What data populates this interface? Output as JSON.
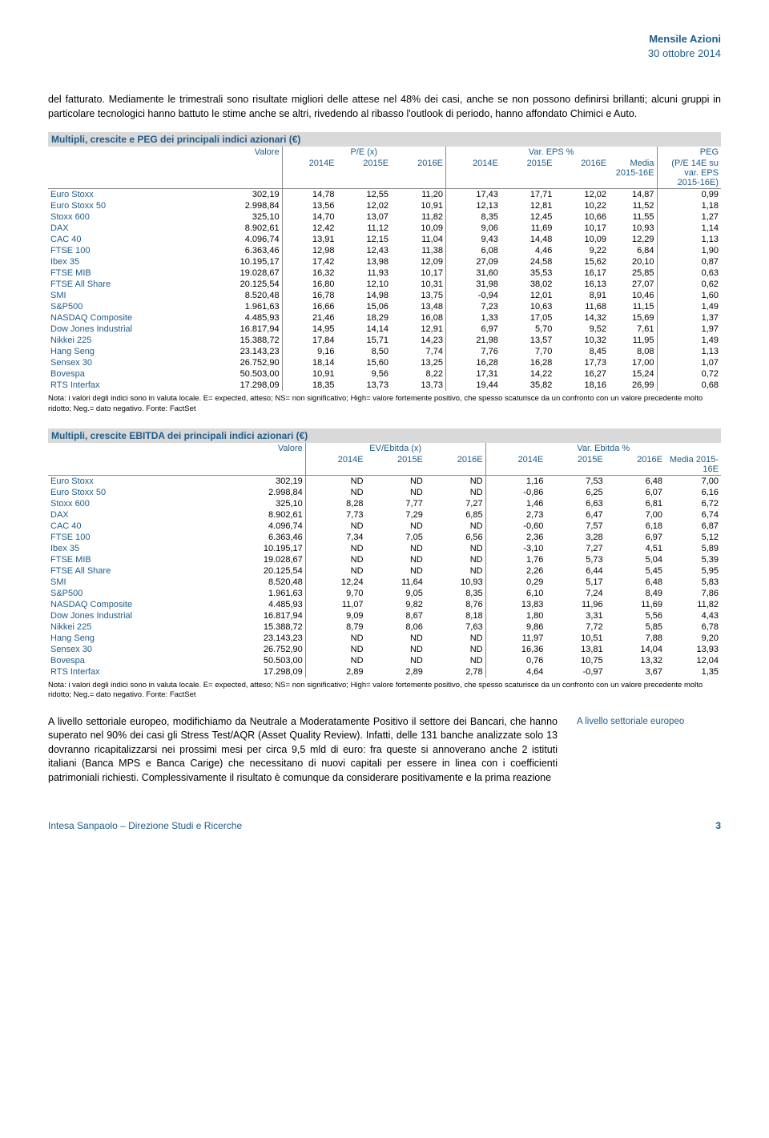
{
  "header": {
    "title": "Mensile Azioni",
    "subtitle": "30 ottobre 2014"
  },
  "intro": "del fatturato. Mediamente le trimestrali sono risultate migliori delle attese nel 48% dei casi, anche se non possono definirsi brillanti; alcuni gruppi in particolare tecnologici hanno battuto le stime anche se altri, rivedendo al ribasso l'outlook di periodo, hanno affondato Chimici e Auto.",
  "table1": {
    "title": "Multipli, crescite e PEG dei principali indici azionari (€)",
    "group_headers": {
      "valore": "Valore",
      "pe": "P/E (x)",
      "vareps": "Var. EPS %",
      "peg": "PEG"
    },
    "col_headers": {
      "c2014e": "2014E",
      "c2015e": "2015E",
      "c2016e": "2016E",
      "media": "Media 2015-16E",
      "peg": "(P/E 14E su var. EPS 2015-16E)"
    },
    "rows": [
      {
        "idx": "Euro Stoxx",
        "v": "302,19",
        "p14": "14,78",
        "p15": "12,55",
        "p16": "11,20",
        "e14": "17,43",
        "e15": "17,71",
        "e16": "12,02",
        "med": "14,87",
        "peg": "0,99"
      },
      {
        "idx": "Euro Stoxx 50",
        "v": "2.998,84",
        "p14": "13,56",
        "p15": "12,02",
        "p16": "10,91",
        "e14": "12,13",
        "e15": "12,81",
        "e16": "10,22",
        "med": "11,52",
        "peg": "1,18"
      },
      {
        "idx": "Stoxx 600",
        "v": "325,10",
        "p14": "14,70",
        "p15": "13,07",
        "p16": "11,82",
        "e14": "8,35",
        "e15": "12,45",
        "e16": "10,66",
        "med": "11,55",
        "peg": "1,27"
      },
      {
        "idx": "DAX",
        "v": "8.902,61",
        "p14": "12,42",
        "p15": "11,12",
        "p16": "10,09",
        "e14": "9,06",
        "e15": "11,69",
        "e16": "10,17",
        "med": "10,93",
        "peg": "1,14"
      },
      {
        "idx": "CAC 40",
        "v": "4.096,74",
        "p14": "13,91",
        "p15": "12,15",
        "p16": "11,04",
        "e14": "9,43",
        "e15": "14,48",
        "e16": "10,09",
        "med": "12,29",
        "peg": "1,13"
      },
      {
        "idx": "FTSE 100",
        "v": "6.363,46",
        "p14": "12,98",
        "p15": "12,43",
        "p16": "11,38",
        "e14": "6,08",
        "e15": "4,46",
        "e16": "9,22",
        "med": "6,84",
        "peg": "1,90"
      },
      {
        "idx": "Ibex 35",
        "v": "10.195,17",
        "p14": "17,42",
        "p15": "13,98",
        "p16": "12,09",
        "e14": "27,09",
        "e15": "24,58",
        "e16": "15,62",
        "med": "20,10",
        "peg": "0,87"
      },
      {
        "idx": "FTSE MIB",
        "v": "19.028,67",
        "p14": "16,32",
        "p15": "11,93",
        "p16": "10,17",
        "e14": "31,60",
        "e15": "35,53",
        "e16": "16,17",
        "med": "25,85",
        "peg": "0,63"
      },
      {
        "idx": "FTSE All Share",
        "v": "20.125,54",
        "p14": "16,80",
        "p15": "12,10",
        "p16": "10,31",
        "e14": "31,98",
        "e15": "38,02",
        "e16": "16,13",
        "med": "27,07",
        "peg": "0,62"
      },
      {
        "idx": "SMI",
        "v": "8.520,48",
        "p14": "16,78",
        "p15": "14,98",
        "p16": "13,75",
        "e14": "-0,94",
        "e15": "12,01",
        "e16": "8,91",
        "med": "10,46",
        "peg": "1,60"
      },
      {
        "idx": "S&P500",
        "v": "1.961,63",
        "p14": "16,66",
        "p15": "15,06",
        "p16": "13,48",
        "e14": "7,23",
        "e15": "10,63",
        "e16": "11,68",
        "med": "11,15",
        "peg": "1,49"
      },
      {
        "idx": "NASDAQ Composite",
        "v": "4.485,93",
        "p14": "21,46",
        "p15": "18,29",
        "p16": "16,08",
        "e14": "1,33",
        "e15": "17,05",
        "e16": "14,32",
        "med": "15,69",
        "peg": "1,37"
      },
      {
        "idx": "Dow Jones Industrial",
        "v": "16.817,94",
        "p14": "14,95",
        "p15": "14,14",
        "p16": "12,91",
        "e14": "6,97",
        "e15": "5,70",
        "e16": "9,52",
        "med": "7,61",
        "peg": "1,97"
      },
      {
        "idx": "Nikkei 225",
        "v": "15.388,72",
        "p14": "17,84",
        "p15": "15,71",
        "p16": "14,23",
        "e14": "21,98",
        "e15": "13,57",
        "e16": "10,32",
        "med": "11,95",
        "peg": "1,49"
      },
      {
        "idx": "Hang Seng",
        "v": "23.143,23",
        "p14": "9,16",
        "p15": "8,50",
        "p16": "7,74",
        "e14": "7,76",
        "e15": "7,70",
        "e16": "8,45",
        "med": "8,08",
        "peg": "1,13"
      },
      {
        "idx": "Sensex 30",
        "v": "26.752,90",
        "p14": "18,14",
        "p15": "15,60",
        "p16": "13,25",
        "e14": "16,28",
        "e15": "16,28",
        "e16": "17,73",
        "med": "17,00",
        "peg": "1,07"
      },
      {
        "idx": "Bovespa",
        "v": "50.503,00",
        "p14": "10,91",
        "p15": "9,56",
        "p16": "8,22",
        "e14": "17,31",
        "e15": "14,22",
        "e16": "16,27",
        "med": "15,24",
        "peg": "0,72"
      },
      {
        "idx": "RTS Interfax",
        "v": "17.298,09",
        "p14": "18,35",
        "p15": "13,73",
        "p16": "13,73",
        "e14": "19,44",
        "e15": "35,82",
        "e16": "18,16",
        "med": "26,99",
        "peg": "0,68"
      }
    ],
    "footnote": "Nota: i valori degli indici sono in valuta locale. E= expected, atteso; NS= non significativo; High= valore fortemente positivo, che spesso scaturisce da un confronto con un valore precedente molto ridotto; Neg.= dato negativo. Fonte: FactSet"
  },
  "table2": {
    "title": "Multipli, crescite EBITDA dei principali indici azionari (€)",
    "group_headers": {
      "valore": "Valore",
      "ev": "EV/Ebitda (x)",
      "vareb": "Var. Ebitda %"
    },
    "col_headers": {
      "c2014e": "2014E",
      "c2015e": "2015E",
      "c2016e": "2016E",
      "media": "Media 2015-16E"
    },
    "rows": [
      {
        "idx": "Euro Stoxx",
        "v": "302,19",
        "p14": "ND",
        "p15": "ND",
        "p16": "ND",
        "e14": "1,16",
        "e15": "7,53",
        "e16": "6,48",
        "med": "7,00"
      },
      {
        "idx": "Euro Stoxx 50",
        "v": "2.998,84",
        "p14": "ND",
        "p15": "ND",
        "p16": "ND",
        "e14": "-0,86",
        "e15": "6,25",
        "e16": "6,07",
        "med": "6,16"
      },
      {
        "idx": "Stoxx 600",
        "v": "325,10",
        "p14": "8,28",
        "p15": "7,77",
        "p16": "7,27",
        "e14": "1,46",
        "e15": "6,63",
        "e16": "6,81",
        "med": "6,72"
      },
      {
        "idx": "DAX",
        "v": "8.902,61",
        "p14": "7,73",
        "p15": "7,29",
        "p16": "6,85",
        "e14": "2,73",
        "e15": "6,47",
        "e16": "7,00",
        "med": "6,74"
      },
      {
        "idx": "CAC 40",
        "v": "4.096,74",
        "p14": "ND",
        "p15": "ND",
        "p16": "ND",
        "e14": "-0,60",
        "e15": "7,57",
        "e16": "6,18",
        "med": "6,87"
      },
      {
        "idx": "FTSE 100",
        "v": "6.363,46",
        "p14": "7,34",
        "p15": "7,05",
        "p16": "6,56",
        "e14": "2,36",
        "e15": "3,28",
        "e16": "6,97",
        "med": "5,12"
      },
      {
        "idx": "Ibex 35",
        "v": "10.195,17",
        "p14": "ND",
        "p15": "ND",
        "p16": "ND",
        "e14": "-3,10",
        "e15": "7,27",
        "e16": "4,51",
        "med": "5,89"
      },
      {
        "idx": "FTSE MIB",
        "v": "19.028,67",
        "p14": "ND",
        "p15": "ND",
        "p16": "ND",
        "e14": "1,76",
        "e15": "5,73",
        "e16": "5,04",
        "med": "5,39"
      },
      {
        "idx": "FTSE All Share",
        "v": "20.125,54",
        "p14": "ND",
        "p15": "ND",
        "p16": "ND",
        "e14": "2,26",
        "e15": "6,44",
        "e16": "5,45",
        "med": "5,95"
      },
      {
        "idx": "SMI",
        "v": "8.520,48",
        "p14": "12,24",
        "p15": "11,64",
        "p16": "10,93",
        "e14": "0,29",
        "e15": "5,17",
        "e16": "6,48",
        "med": "5,83"
      },
      {
        "idx": "S&P500",
        "v": "1.961,63",
        "p14": "9,70",
        "p15": "9,05",
        "p16": "8,35",
        "e14": "6,10",
        "e15": "7,24",
        "e16": "8,49",
        "med": "7,86"
      },
      {
        "idx": "NASDAQ Composite",
        "v": "4.485,93",
        "p14": "11,07",
        "p15": "9,82",
        "p16": "8,76",
        "e14": "13,83",
        "e15": "11,96",
        "e16": "11,69",
        "med": "11,82"
      },
      {
        "idx": "Dow Jones Industrial",
        "v": "16.817,94",
        "p14": "9,09",
        "p15": "8,67",
        "p16": "8,18",
        "e14": "1,80",
        "e15": "3,31",
        "e16": "5,56",
        "med": "4,43"
      },
      {
        "idx": "Nikkei 225",
        "v": "15.388,72",
        "p14": "8,79",
        "p15": "8,06",
        "p16": "7,63",
        "e14": "9,86",
        "e15": "7,72",
        "e16": "5,85",
        "med": "6,78"
      },
      {
        "idx": "Hang Seng",
        "v": "23.143,23",
        "p14": "ND",
        "p15": "ND",
        "p16": "ND",
        "e14": "11,97",
        "e15": "10,51",
        "e16": "7,88",
        "med": "9,20"
      },
      {
        "idx": "Sensex 30",
        "v": "26.752,90",
        "p14": "ND",
        "p15": "ND",
        "p16": "ND",
        "e14": "16,36",
        "e15": "13,81",
        "e16": "14,04",
        "med": "13,93"
      },
      {
        "idx": "Bovespa",
        "v": "50.503,00",
        "p14": "ND",
        "p15": "ND",
        "p16": "ND",
        "e14": "0,76",
        "e15": "10,75",
        "e16": "13,32",
        "med": "12,04"
      },
      {
        "idx": "RTS Interfax",
        "v": "17.298,09",
        "p14": "2,89",
        "p15": "2,89",
        "p16": "2,78",
        "e14": "4,64",
        "e15": "-0,97",
        "e16": "3,67",
        "med": "1,35"
      }
    ],
    "footnote": "Nota: i valori degli indici sono in valuta locale. E= expected, atteso; NS= non significativo; High= valore fortemente positivo, che spesso scaturisce da un confronto con un valore precedente molto ridotto; Neg.= dato negativo. Fonte: FactSet"
  },
  "bottom": {
    "main": "A livello settoriale europeo, modifichiamo da Neutrale a Moderatamente Positivo il settore dei Bancari, che hanno superato nel 90% dei casi gli Stress Test/AQR (Asset Quality Review). Infatti, delle 131 banche analizzate solo 13 dovranno ricapitalizzarsi nei prossimi mesi per circa 9,5 mld di euro: fra queste si annoverano anche 2 istituti italiani (Banca MPS e Banca Carige) che necessitano di nuovi capitali per essere in linea con i coefficienti patrimoniali richiesti. Complessivamente il risultato è comunque da considerare positivamente e la prima reazione",
    "side": "A livello settoriale europeo"
  },
  "footer": {
    "left": "Intesa Sanpaolo – Direzione Studi e Ricerche",
    "page": "3"
  }
}
